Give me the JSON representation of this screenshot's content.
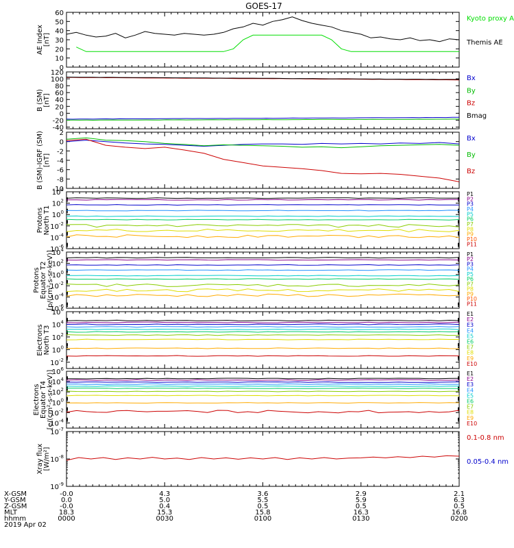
{
  "title": "GOES-17",
  "time_axis": {
    "rows": [
      {
        "label": "X-GSM",
        "values": [
          "-0.0",
          "4.3",
          "3.6",
          "2.9",
          "2.1"
        ]
      },
      {
        "label": "Y-GSM",
        "values": [
          "0.0",
          "5.0",
          "5.5",
          "5.9",
          "6.3"
        ]
      },
      {
        "label": "Z-GSM",
        "values": [
          "-0.0",
          "0.4",
          "0.5",
          "0.5",
          "0.5"
        ]
      },
      {
        "label": "MLT",
        "values": [
          "18.3",
          "15.3",
          "15.8",
          "16.3",
          "16.8"
        ]
      },
      {
        "label": "hhmm",
        "values": [
          "0000",
          "0030",
          "0100",
          "0130",
          "0200"
        ]
      }
    ],
    "date": "2019 Apr 02"
  },
  "chart_data": [
    {
      "type": "line",
      "ylabel": "AE Index",
      "yunit": "[nT]",
      "ylim": [
        0,
        60
      ],
      "ytick_labels": [
        "0",
        "10",
        "20",
        "30",
        "40",
        "50",
        "60"
      ],
      "x_minutes": [
        0,
        3,
        6,
        9,
        12,
        15,
        18,
        21,
        24,
        27,
        30,
        33,
        36,
        39,
        42,
        45,
        48,
        51,
        54,
        57,
        60,
        63,
        66,
        69,
        72,
        75,
        78,
        81,
        84,
        87,
        90,
        93,
        96,
        99,
        102,
        105,
        108,
        111,
        114,
        117,
        120
      ],
      "series": [
        {
          "name": "Kyoto proxy AE",
          "color": "#00dd00",
          "values": [
            null,
            22,
            17,
            17,
            17,
            17,
            17,
            17,
            17,
            17,
            17,
            17,
            17,
            17,
            17,
            17,
            17,
            20,
            30,
            35,
            35,
            35,
            35,
            35,
            35,
            35,
            35,
            30,
            20,
            17,
            17,
            17,
            17,
            17,
            17,
            17,
            17,
            17,
            17,
            17,
            17
          ]
        },
        {
          "name": "Themis AE",
          "color": "#000000",
          "values": [
            36,
            38,
            35,
            33,
            34,
            37,
            32,
            35,
            39,
            37,
            36,
            35,
            37,
            36,
            35,
            36,
            38,
            42,
            44,
            48,
            46,
            50,
            52,
            55,
            51,
            48,
            46,
            44,
            40,
            38,
            36,
            32,
            33,
            31,
            30,
            32,
            29,
            30,
            28,
            31,
            30
          ]
        }
      ]
    },
    {
      "type": "line",
      "ylabel": "B (SM)",
      "yunit": "[nT]",
      "ylim": [
        -45,
        120
      ],
      "ytick_labels": [
        "-40",
        "-20",
        "0",
        "20",
        "40",
        "60",
        "80",
        "100",
        "120"
      ],
      "series": [
        {
          "name": "Bx",
          "color": "#0000cc",
          "start": -17,
          "end": -12
        },
        {
          "name": "By",
          "color": "#00bb00",
          "start": -20,
          "end": -17
        },
        {
          "name": "Bz",
          "color": "#cc0000",
          "start": 104,
          "end": 97
        },
        {
          "name": "Bmag",
          "color": "#000000",
          "start": 105,
          "end": 98
        }
      ]
    },
    {
      "type": "line",
      "ylabel": "B (SM)-IGRF (SM)",
      "yunit": "[nT]",
      "ylim": [
        -10,
        2
      ],
      "ytick_labels": [
        "-10",
        "-8",
        "-6",
        "-4",
        "-2",
        "0",
        "2"
      ],
      "x_minutes": [
        0,
        6,
        12,
        18,
        24,
        30,
        36,
        42,
        48,
        54,
        60,
        66,
        72,
        78,
        84,
        90,
        96,
        102,
        108,
        114,
        120
      ],
      "series": [
        {
          "name": "Bx",
          "color": "#0000cc",
          "values": [
            0,
            0.3,
            0,
            -0.3,
            -0.5,
            -0.6,
            -0.8,
            -1,
            -0.8,
            -0.6,
            -0.5,
            -0.5,
            -0.6,
            -0.4,
            -0.5,
            -0.4,
            -0.5,
            -0.3,
            -0.4,
            -0.2,
            -0.5
          ]
        },
        {
          "name": "By",
          "color": "#00bb00",
          "values": [
            0.5,
            0.8,
            0.3,
            0.2,
            0,
            -0.4,
            -0.6,
            -0.9,
            -0.7,
            -0.8,
            -0.9,
            -1,
            -1.2,
            -1.1,
            -1.3,
            -1.1,
            -0.9,
            -0.8,
            -0.7,
            -0.6,
            -0.8
          ]
        },
        {
          "name": "Bz",
          "color": "#cc0000",
          "values": [
            0.2,
            0.5,
            -0.8,
            -1.2,
            -1.5,
            -1.2,
            -1.8,
            -2.5,
            -3.8,
            -4.5,
            -5.2,
            -5.5,
            -5.8,
            -6.2,
            -6.8,
            -6.9,
            -6.8,
            -7,
            -7.4,
            -7.8,
            -8.6
          ]
        }
      ]
    },
    {
      "type": "line",
      "ylabel": "Protons",
      "ylabel2": "North T1",
      "yscale": "log",
      "ylim": [
        1e-06,
        10000.0
      ],
      "ytick_exponents": [
        -6,
        -4,
        -2,
        0,
        2,
        4
      ],
      "series": [
        {
          "name": "P1",
          "color": "#000000",
          "log_value": 2.9
        },
        {
          "name": "P2",
          "color": "#8b008b",
          "log_value": 2.6
        },
        {
          "name": "P3",
          "color": "#0000cc",
          "log_value": 1.7
        },
        {
          "name": "P4",
          "color": "#1e90ff",
          "log_value": 0.7
        },
        {
          "name": "P5",
          "color": "#00cccc",
          "log_value": -0.3
        },
        {
          "name": "P6",
          "color": "#00cc66",
          "log_value": -0.9
        },
        {
          "name": "P7",
          "color": "#88cc00",
          "log_value": -2.0
        },
        {
          "name": "P8",
          "color": "#dddd00",
          "log_value": -2.8
        },
        {
          "name": "P9",
          "color": "#ffaa00",
          "log_value": -3.8
        },
        {
          "name": "P10",
          "color": "#ff5500",
          "log_value": null
        },
        {
          "name": "P11",
          "color": "#cc0000",
          "log_value": null
        }
      ]
    },
    {
      "type": "line",
      "ylabel": "Protons",
      "ylabel2": "Equator T2",
      "yunit": "[p/(cm²-s-sr-keV)]",
      "yscale": "log",
      "ylim": [
        1e-06,
        10000.0
      ],
      "ytick_exponents": [
        -6,
        -4,
        -2,
        0,
        2,
        4
      ],
      "series": [
        {
          "name": "P1",
          "color": "#000000",
          "log_value": 3.0
        },
        {
          "name": "P2",
          "color": "#8b008b",
          "log_value": 2.6
        },
        {
          "name": "P3",
          "color": "#0000cc",
          "log_value": 1.7
        },
        {
          "name": "P4",
          "color": "#1e90ff",
          "log_value": 0.8
        },
        {
          "name": "P5",
          "color": "#00cccc",
          "log_value": -0.2
        },
        {
          "name": "P6",
          "color": "#00cc66",
          "log_value": -0.8
        },
        {
          "name": "P7",
          "color": "#88cc00",
          "log_value": -1.9
        },
        {
          "name": "P8",
          "color": "#dddd00",
          "log_value": -2.8
        },
        {
          "name": "P9",
          "color": "#ffaa00",
          "log_value": -3.7
        },
        {
          "name": "P10",
          "color": "#ff5500",
          "log_value": null
        },
        {
          "name": "P11",
          "color": "#cc0000",
          "log_value": null
        }
      ]
    },
    {
      "type": "line",
      "ylabel": "Electrons",
      "ylabel2": "North T3",
      "yscale": "log",
      "ylim": [
        0.001,
        1000000.0
      ],
      "ytick_exponents": [
        -2,
        0,
        2,
        4,
        6
      ],
      "series": [
        {
          "name": "E1",
          "color": "#000000",
          "log_value": 4.6
        },
        {
          "name": "E2",
          "color": "#8b008b",
          "log_value": 4.3
        },
        {
          "name": "E3",
          "color": "#0000cc",
          "log_value": 4.0
        },
        {
          "name": "E4",
          "color": "#1e90ff",
          "log_value": 3.6
        },
        {
          "name": "E5",
          "color": "#00cccc",
          "log_value": 3.2
        },
        {
          "name": "E6",
          "color": "#00cc66",
          "log_value": 2.8
        },
        {
          "name": "E7",
          "color": "#88cc00",
          "log_value": 2.3
        },
        {
          "name": "E8",
          "color": "#dddd00",
          "log_value": 1.6
        },
        {
          "name": "E9",
          "color": "#ffaa00",
          "log_value": 0.2
        },
        {
          "name": "E10",
          "color": "#cc0000",
          "log_value": -1.0
        }
      ]
    },
    {
      "type": "line",
      "ylabel": "Electrons",
      "ylabel2": "Equator T4",
      "yunit": "[e/(cm²-s-sr-keV)]",
      "yscale": "log",
      "ylim": [
        1e-05,
        1000000.0
      ],
      "ytick_exponents": [
        -4,
        -2,
        0,
        2,
        4,
        6
      ],
      "series": [
        {
          "name": "E1",
          "color": "#000000",
          "log_value": 4.6
        },
        {
          "name": "E2",
          "color": "#8b008b",
          "log_value": 4.3
        },
        {
          "name": "E3",
          "color": "#0000cc",
          "log_value": 3.9
        },
        {
          "name": "E4",
          "color": "#1e90ff",
          "log_value": 3.5
        },
        {
          "name": "E5",
          "color": "#00cccc",
          "log_value": 3.1
        },
        {
          "name": "E6",
          "color": "#00cc66",
          "log_value": 2.7
        },
        {
          "name": "E7",
          "color": "#88cc00",
          "log_value": 2.1
        },
        {
          "name": "E8",
          "color": "#dddd00",
          "log_value": 1.3
        },
        {
          "name": "E9",
          "color": "#ffaa00",
          "log_value": -0.1
        },
        {
          "name": "E10",
          "color": "#cc0000",
          "log_value": -1.8
        }
      ]
    },
    {
      "type": "line",
      "ylabel": "Xray flux",
      "yunit": "[W/m²]",
      "yscale": "log",
      "ylim": [
        1e-09,
        1e-07
      ],
      "ytick_exponents": [
        -9,
        -8,
        -7
      ],
      "series": [
        {
          "name": "0.1-0.8 nm",
          "color": "#cc0000",
          "values_log": [
            -8.05,
            -7.95,
            -8.0,
            -7.95,
            -8.02,
            -7.96,
            -8.0,
            -7.94,
            -8.0,
            -7.97,
            -8.02,
            -7.95,
            -8.0,
            -7.96,
            -8.01,
            -7.96,
            -8.0,
            -7.95,
            -8.02,
            -7.96,
            -8.0,
            -7.95,
            -8.0,
            -7.97,
            -7.96,
            -7.93,
            -7.96,
            -7.92,
            -7.95,
            -7.9,
            -7.93,
            -7.88,
            -7.9
          ]
        },
        {
          "name": "0.05-0.4 nm",
          "color": "#0000cc",
          "values_log": null
        }
      ]
    }
  ]
}
